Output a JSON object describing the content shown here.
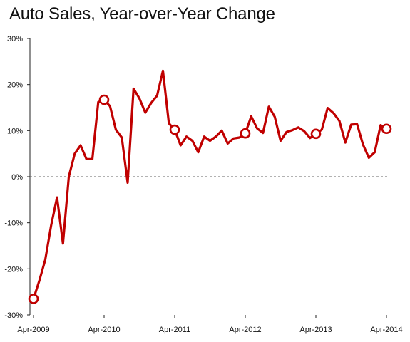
{
  "chart_data": {
    "type": "line",
    "title": "Auto Sales, Year-over-Year Change",
    "xlabel": "",
    "ylabel": "",
    "ylim": [
      -30,
      30
    ],
    "y_ticks": [
      30,
      20,
      10,
      0,
      -10,
      -20,
      -30
    ],
    "y_tick_labels": [
      "30%",
      "20%",
      "10%",
      "0%",
      "-10%",
      "-20%",
      "-30%"
    ],
    "x_tick_labels": [
      "Apr-2009",
      "Apr-2010",
      "Apr-2011",
      "Apr-2012",
      "Apr-2013",
      "Apr-2014"
    ],
    "x_tick_months": [
      0,
      12,
      24,
      36,
      48,
      60
    ],
    "zero_line": "dashed",
    "grid": false,
    "legend": "none",
    "line_color": "#c00000",
    "marker_indices": [
      0,
      12,
      24,
      36,
      48,
      60
    ],
    "series": [
      {
        "values": [
          -26.5,
          -22.5,
          -18,
          -10.5,
          -4.5,
          -14.5,
          0,
          5,
          6.8,
          3.8,
          3.8,
          16.2,
          16.7,
          15.3,
          10.2,
          8.5,
          -1.3,
          19.1,
          17,
          13.9,
          16,
          17.6,
          23,
          11.6,
          10.2,
          6.8,
          8.7,
          7.8,
          5.3,
          8.7,
          7.8,
          8.7,
          10,
          7.2,
          8.3,
          8.5,
          9.4,
          13.1,
          10.5,
          9.5,
          15.2,
          13,
          7.8,
          9.7,
          10.1,
          10.7,
          9.9,
          8.4,
          9.3,
          10.2,
          14.9,
          13.8,
          12.1,
          7.4,
          11.3,
          11.4,
          7,
          4.1,
          5.3,
          11.2,
          10.4
        ]
      }
    ]
  }
}
